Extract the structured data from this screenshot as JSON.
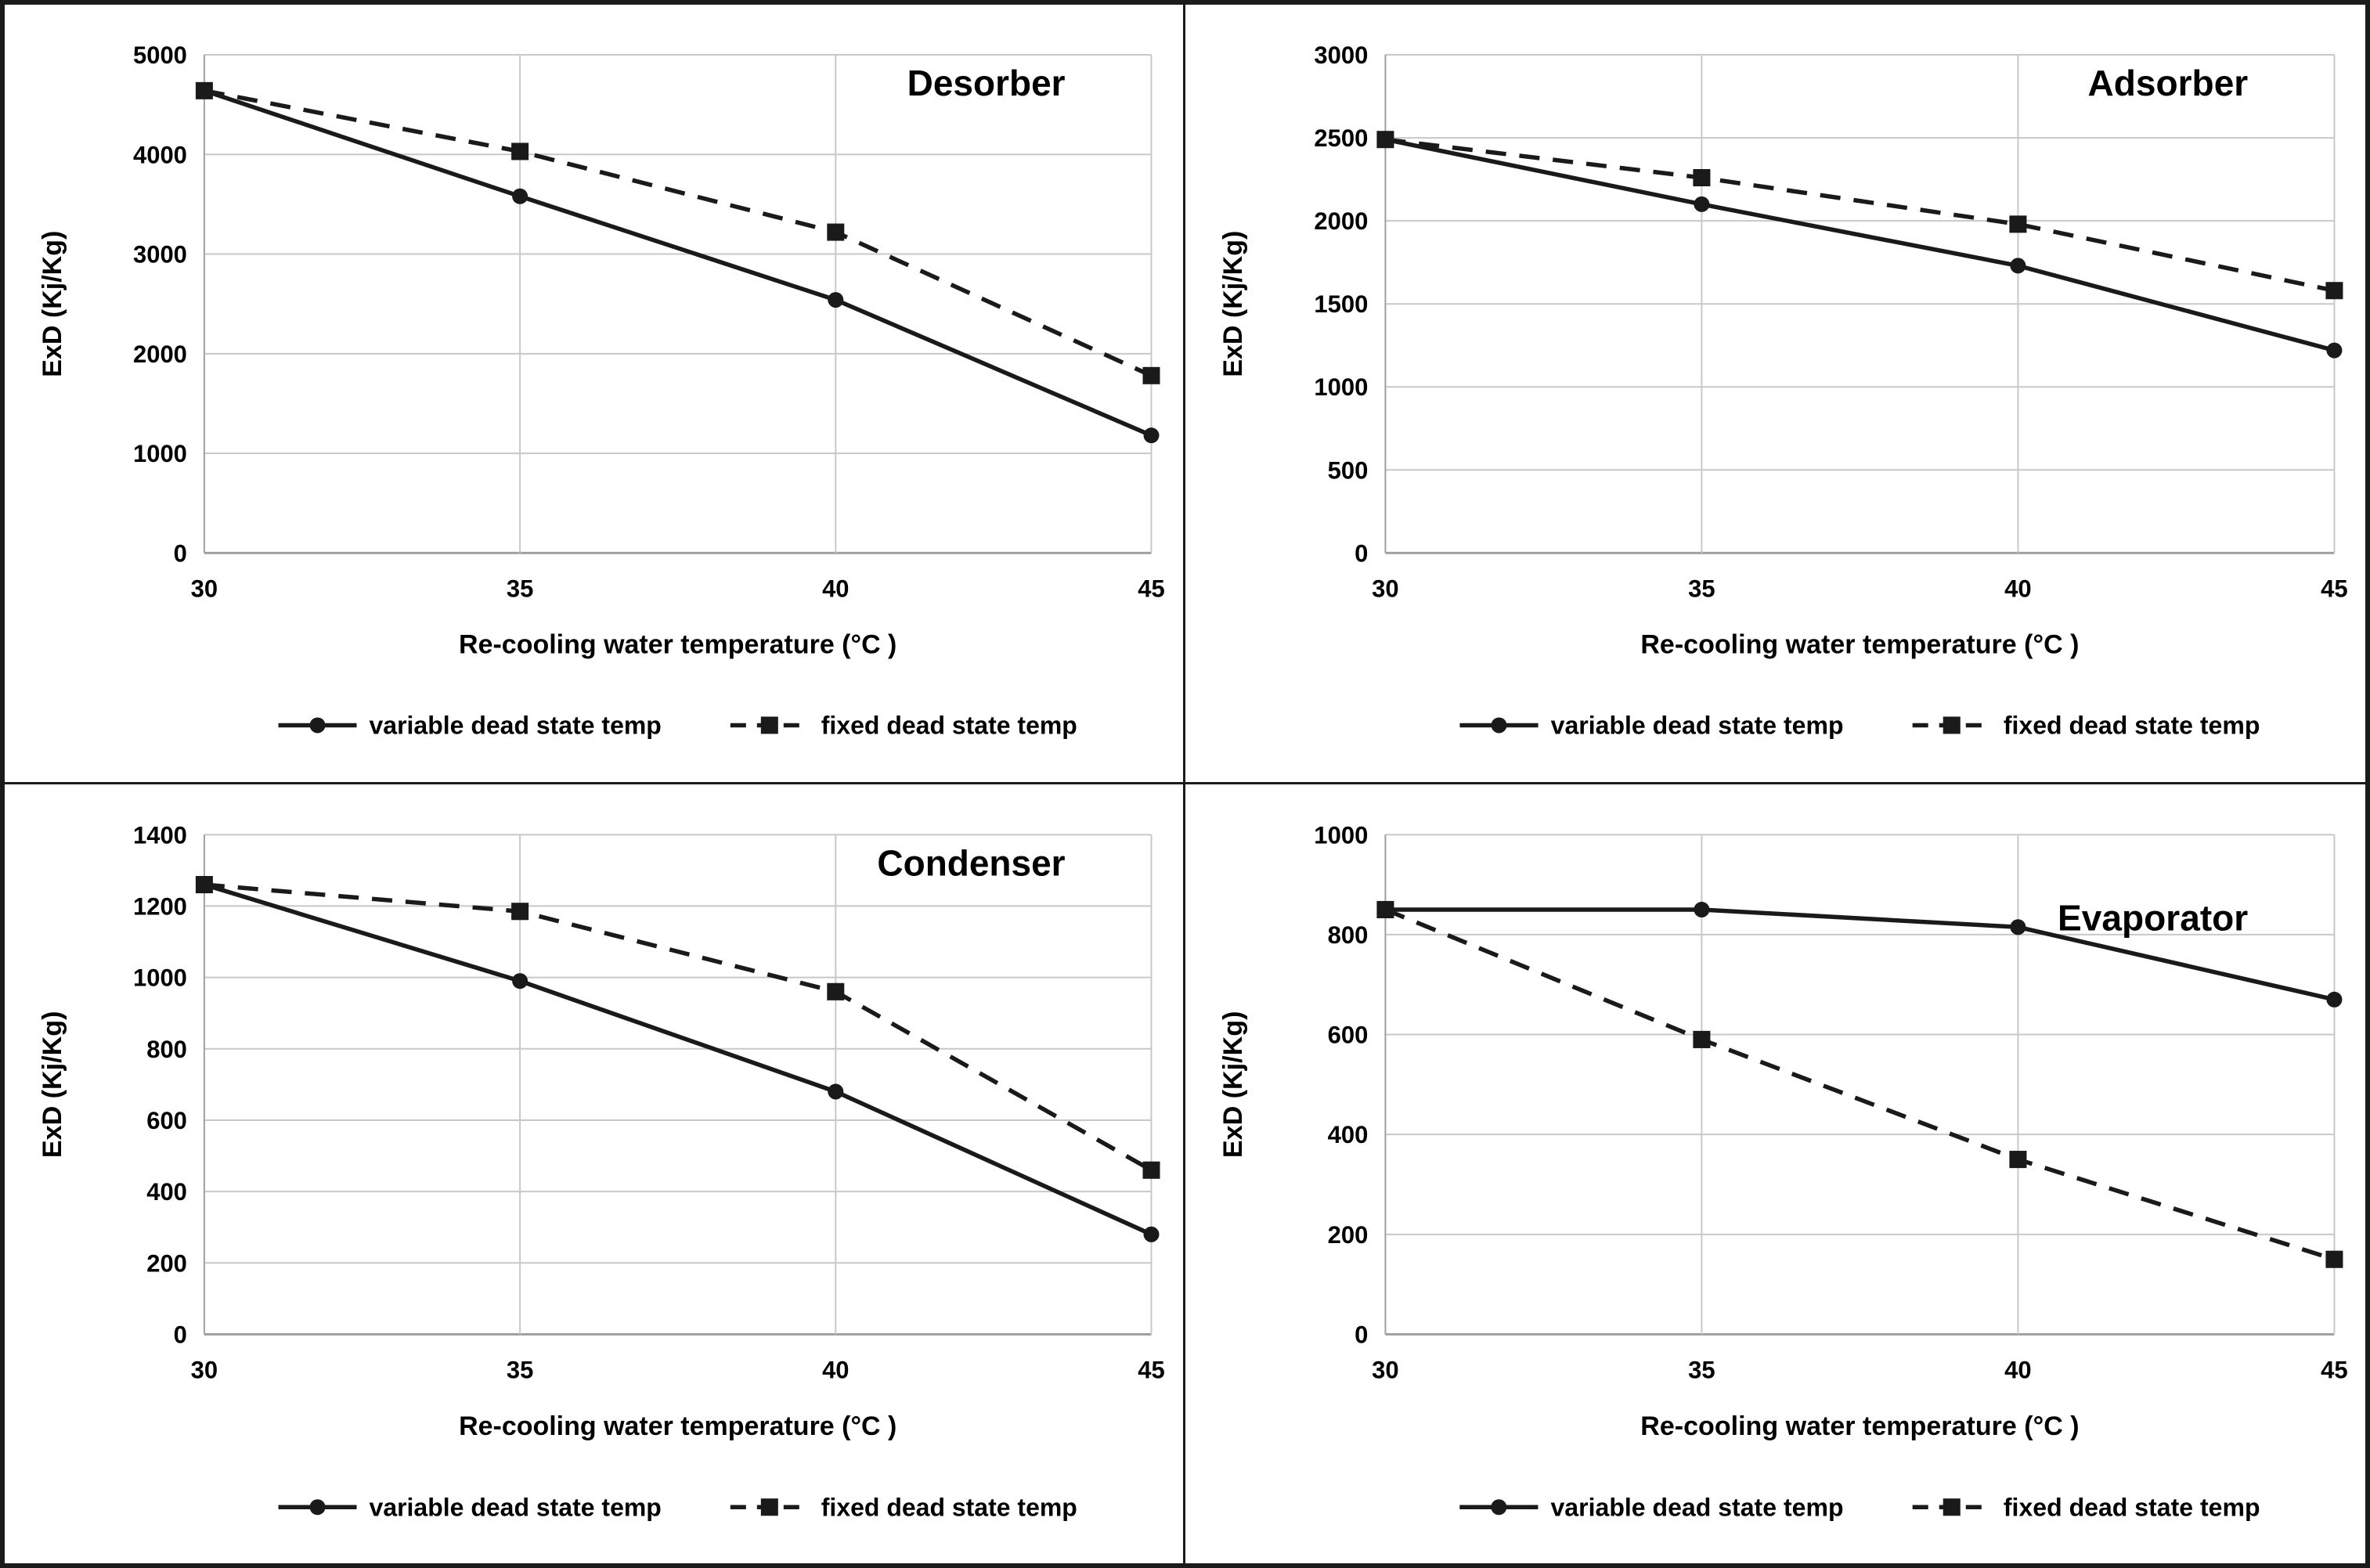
{
  "colors": {
    "line": "#1a1a1a",
    "grid": "#c8c8c8",
    "axis": "#a0a0a0",
    "text": "#000000",
    "background": "#ffffff",
    "border": "#1b1b1b"
  },
  "chart_data": [
    {
      "type": "line",
      "title": "Desorber",
      "xlabel": "Re-cooling water temperature (°C )",
      "ylabel": "ExD (Kj/Kg)",
      "x": [
        30,
        35,
        40,
        45
      ],
      "x_tick_labels": [
        "30",
        "35",
        "40",
        "45"
      ],
      "ylim": [
        0,
        5000
      ],
      "ytick_step": 1000,
      "grid": true,
      "legend_position": "bottom",
      "title_dy": 52,
      "series": [
        {
          "name": "variable dead state temp",
          "style": "solid",
          "marker": "circle",
          "values": [
            4640,
            3580,
            2540,
            1180
          ]
        },
        {
          "name": "fixed dead state temp",
          "style": "dashed",
          "marker": "square",
          "values": [
            4640,
            4030,
            3220,
            1780
          ]
        }
      ]
    },
    {
      "type": "line",
      "title": "Adsorber",
      "xlabel": "Re-cooling water temperature (°C )",
      "ylabel": "ExD (Kj/Kg)",
      "x": [
        30,
        35,
        40,
        45
      ],
      "x_tick_labels": [
        "30",
        "35",
        "40",
        "45"
      ],
      "ylim": [
        0,
        3000
      ],
      "ytick_step": 500,
      "grid": true,
      "legend_position": "bottom",
      "title_dy": 52,
      "series": [
        {
          "name": "variable dead state temp",
          "style": "solid",
          "marker": "circle",
          "values": [
            2490,
            2100,
            1730,
            1220
          ]
        },
        {
          "name": "fixed dead state temp",
          "style": "dashed",
          "marker": "square",
          "values": [
            2490,
            2260,
            1980,
            1580
          ]
        }
      ]
    },
    {
      "type": "line",
      "title": "Condenser",
      "xlabel": "Re-cooling water temperature (°C )",
      "ylabel": "ExD (Kj/Kg)",
      "x": [
        30,
        35,
        40,
        45
      ],
      "x_tick_labels": [
        "30",
        "35",
        "40",
        "45"
      ],
      "ylim": [
        0,
        1400
      ],
      "ytick_step": 200,
      "grid": true,
      "legend_position": "bottom",
      "title_dy": 52,
      "series": [
        {
          "name": "variable dead state temp",
          "style": "solid",
          "marker": "circle",
          "values": [
            1260,
            990,
            680,
            280
          ]
        },
        {
          "name": "fixed dead state temp",
          "style": "dashed",
          "marker": "square",
          "values": [
            1260,
            1185,
            960,
            460
          ]
        }
      ]
    },
    {
      "type": "line",
      "title": "Evaporator",
      "xlabel": "Re-cooling water temperature (°C )",
      "ylabel": "ExD (Kj/Kg)",
      "x": [
        30,
        35,
        40,
        45
      ],
      "x_tick_labels": [
        "30",
        "35",
        "40",
        "45"
      ],
      "ylim": [
        0,
        1000
      ],
      "ytick_step": 200,
      "grid": true,
      "legend_position": "bottom",
      "title_dy": 122,
      "series": [
        {
          "name": "variable dead state temp",
          "style": "solid",
          "marker": "circle",
          "values": [
            850,
            850,
            815,
            670
          ]
        },
        {
          "name": "fixed dead state temp",
          "style": "dashed",
          "marker": "square",
          "values": [
            850,
            590,
            350,
            150
          ]
        }
      ]
    }
  ]
}
